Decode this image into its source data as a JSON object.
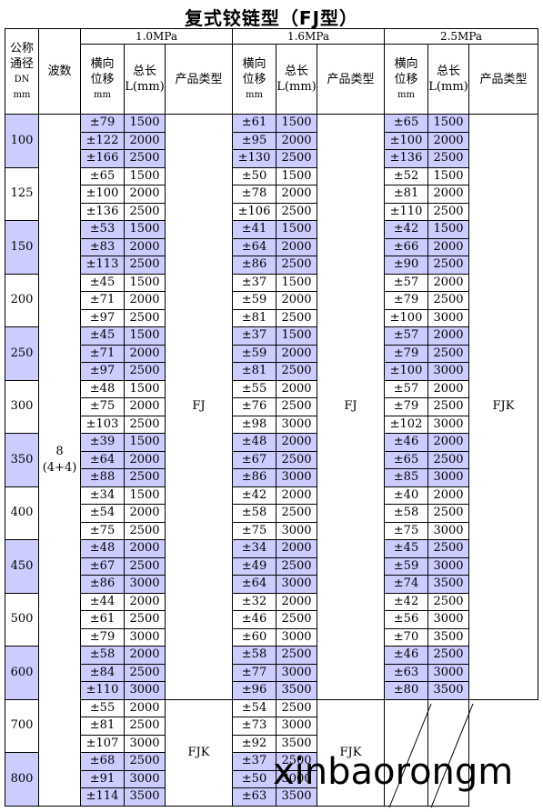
{
  "title": "复式铰链型（FJ型）",
  "watermark": "xinbaorongm",
  "headers": {
    "dn": [
      "公称",
      "通径",
      "DN",
      "mm"
    ],
    "waves": "波数",
    "disp": [
      "横向",
      "位移",
      "mm"
    ],
    "len": [
      "总长",
      "L(mm)"
    ],
    "type": "产品类型",
    "pressures": [
      "1.0MPa",
      "1.6MPa",
      "2.5MPa"
    ]
  },
  "waves_value": [
    "8",
    "(4+4)"
  ],
  "types": {
    "p10_a": "FJ",
    "p10_b": "FJK",
    "p16_a": "FJ",
    "p16_b": "FJK",
    "p25": "FJK"
  },
  "groups": [
    {
      "dn": "100",
      "rows": [
        [
          "±79",
          "1500",
          "±61",
          "1500",
          "±65",
          "1500"
        ],
        [
          "±122",
          "2000",
          "±95",
          "2000",
          "±100",
          "2000"
        ],
        [
          "±166",
          "2500",
          "±130",
          "2500",
          "±136",
          "2500"
        ]
      ]
    },
    {
      "dn": "125",
      "rows": [
        [
          "±65",
          "1500",
          "±50",
          "1500",
          "±52",
          "1500"
        ],
        [
          "±100",
          "2000",
          "±78",
          "2000",
          "±81",
          "2000"
        ],
        [
          "±136",
          "2500",
          "±106",
          "2500",
          "±110",
          "2500"
        ]
      ]
    },
    {
      "dn": "150",
      "rows": [
        [
          "±53",
          "1500",
          "±41",
          "1500",
          "±42",
          "1500"
        ],
        [
          "±83",
          "2000",
          "±64",
          "2000",
          "±66",
          "2000"
        ],
        [
          "±113",
          "2500",
          "±86",
          "2500",
          "±90",
          "2500"
        ]
      ]
    },
    {
      "dn": "200",
      "rows": [
        [
          "±45",
          "1500",
          "±37",
          "1500",
          "±57",
          "2000"
        ],
        [
          "±71",
          "2000",
          "±59",
          "2000",
          "±79",
          "2500"
        ],
        [
          "±97",
          "2500",
          "±81",
          "2500",
          "±100",
          "3000"
        ]
      ]
    },
    {
      "dn": "250",
      "rows": [
        [
          "±45",
          "1500",
          "±37",
          "1500",
          "±57",
          "2000"
        ],
        [
          "±71",
          "2000",
          "±59",
          "2000",
          "±79",
          "2500"
        ],
        [
          "±97",
          "2500",
          "±81",
          "2500",
          "±100",
          "3000"
        ]
      ]
    },
    {
      "dn": "300",
      "rows": [
        [
          "±48",
          "1500",
          "±55",
          "2000",
          "±57",
          "2000"
        ],
        [
          "±75",
          "2000",
          "±76",
          "2500",
          "±79",
          "2500"
        ],
        [
          "±103",
          "2500",
          "±98",
          "3000",
          "±102",
          "3000"
        ]
      ]
    },
    {
      "dn": "350",
      "rows": [
        [
          "±39",
          "1500",
          "±48",
          "2000",
          "±46",
          "2000"
        ],
        [
          "±64",
          "2000",
          "±67",
          "2500",
          "±65",
          "2500"
        ],
        [
          "±88",
          "2500",
          "±86",
          "3000",
          "±85",
          "3000"
        ]
      ]
    },
    {
      "dn": "400",
      "rows": [
        [
          "±34",
          "1500",
          "±42",
          "2000",
          "±40",
          "2000"
        ],
        [
          "±54",
          "2000",
          "±58",
          "2500",
          "±58",
          "2500"
        ],
        [
          "±75",
          "2500",
          "±75",
          "3000",
          "±75",
          "3000"
        ]
      ]
    },
    {
      "dn": "450",
      "rows": [
        [
          "±48",
          "2000",
          "±34",
          "2000",
          "±45",
          "2500"
        ],
        [
          "±67",
          "2500",
          "±49",
          "2500",
          "±59",
          "3000"
        ],
        [
          "±86",
          "3000",
          "±64",
          "3000",
          "±74",
          "3500"
        ]
      ]
    },
    {
      "dn": "500",
      "rows": [
        [
          "±44",
          "2000",
          "±32",
          "2000",
          "±42",
          "2500"
        ],
        [
          "±61",
          "2500",
          "±46",
          "2500",
          "±56",
          "3000"
        ],
        [
          "±79",
          "3000",
          "±60",
          "3000",
          "±70",
          "3500"
        ]
      ]
    },
    {
      "dn": "600",
      "rows": [
        [
          "±58",
          "2000",
          "±58",
          "2500",
          "±46",
          "2500"
        ],
        [
          "±84",
          "2500",
          "±77",
          "3000",
          "±63",
          "3000"
        ],
        [
          "±110",
          "3000",
          "±96",
          "3500",
          "±80",
          "3500"
        ]
      ]
    },
    {
      "dn": "700",
      "rows": [
        [
          "±55",
          "2000",
          "±54",
          "2500",
          "",
          ""
        ],
        [
          "±81",
          "2500",
          "±73",
          "3000",
          "",
          ""
        ],
        [
          "±107",
          "3000",
          "±92",
          "3500",
          "",
          ""
        ]
      ]
    },
    {
      "dn": "800",
      "rows": [
        [
          "±68",
          "2500",
          "±37",
          "2500",
          "",
          ""
        ],
        [
          "±91",
          "3000",
          "±50",
          "3000",
          "",
          ""
        ],
        [
          "±114",
          "3500",
          "±63",
          "3500",
          "",
          ""
        ]
      ]
    }
  ]
}
